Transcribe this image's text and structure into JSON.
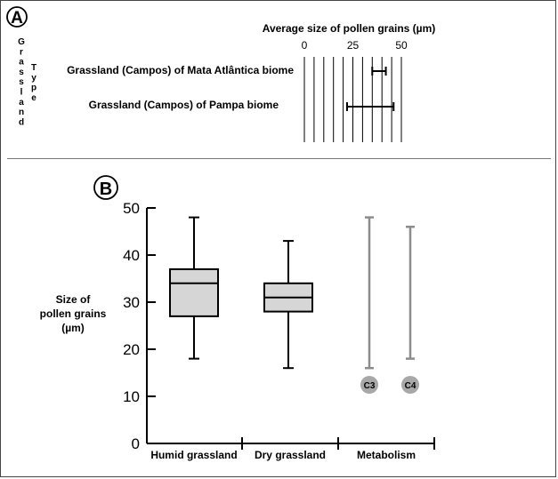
{
  "panel_a": {
    "label": "A",
    "row_axis_title_1": "Grassland",
    "row_axis_title_2": "Type"
  },
  "panel_b": {
    "label": "B"
  },
  "chart_data": [
    {
      "type": "range",
      "panel": "A",
      "title": "Average size of pollen grains (µm)",
      "xlim": [
        0,
        50
      ],
      "x_ticks": [
        0,
        25,
        50
      ],
      "vertical_grid_step": 5,
      "categories": [
        "Grassland (Campos) of Mata Atlântica biome",
        "Grassland (Campos) of Pampa biome"
      ],
      "ranges": [
        [
          35,
          42
        ],
        [
          22,
          46
        ]
      ]
    },
    {
      "type": "box",
      "panel": "B",
      "ylabel": "Size of pollen grains (µm)",
      "ylim": [
        0,
        50
      ],
      "y_ticks": [
        0,
        10,
        20,
        30,
        40,
        50
      ],
      "group_labels": [
        "Humid grassland",
        "Dry grassland",
        "Metabolism"
      ],
      "boxes": [
        {
          "category": "Humid grassland",
          "min": 18,
          "q1": 27,
          "median": 34,
          "q3": 37,
          "max": 48
        },
        {
          "category": "Dry grassland",
          "min": 16,
          "q1": 28,
          "median": 31,
          "q3": 34,
          "max": 43
        }
      ],
      "ranges": [
        {
          "label": "C3",
          "min": 16,
          "max": 48
        },
        {
          "label": "C4",
          "min": 18,
          "max": 46
        }
      ],
      "colors": {
        "box_fill": "#d6d6d6",
        "range_line": "#8c8c8c",
        "range_marker": "#a8a8a8"
      }
    }
  ]
}
